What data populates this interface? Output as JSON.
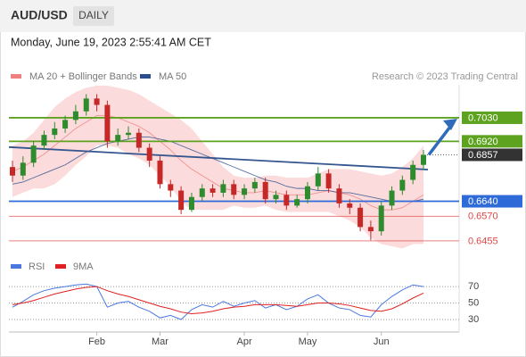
{
  "header": {
    "symbol": "AUD/USD",
    "interval": "DAILY",
    "timestamp": "Monday, June 19, 2023 2:55:41 AM CET",
    "credit": "Research © 2023 Trading Central"
  },
  "chart_data": [
    {
      "type": "candlestick",
      "categories": [
        null,
        null,
        null,
        null,
        null,
        null,
        null,
        null,
        "Feb",
        null,
        null,
        null,
        null,
        null,
        "Mar",
        null,
        null,
        null,
        null,
        null,
        null,
        null,
        "Apr",
        null,
        null,
        null,
        null,
        null,
        "May",
        null,
        null,
        null,
        null,
        null,
        null,
        "Jun",
        null,
        null,
        null,
        null
      ],
      "open": [
        0.68,
        0.676,
        0.682,
        0.69,
        0.695,
        0.698,
        0.702,
        0.706,
        0.712,
        0.709,
        0.692,
        0.695,
        0.696,
        0.689,
        0.683,
        0.672,
        0.669,
        0.66,
        0.666,
        0.67,
        0.668,
        0.672,
        0.667,
        0.67,
        0.673,
        0.665,
        0.667,
        0.662,
        0.665,
        0.671,
        0.677,
        0.67,
        0.663,
        0.661,
        0.652,
        0.65,
        0.662,
        0.669,
        0.674,
        0.681
      ],
      "high": [
        0.683,
        0.685,
        0.692,
        0.697,
        0.701,
        0.704,
        0.709,
        0.714,
        0.714,
        0.711,
        0.698,
        0.699,
        0.698,
        0.691,
        0.685,
        0.674,
        0.671,
        0.668,
        0.672,
        0.672,
        0.674,
        0.674,
        0.672,
        0.675,
        0.675,
        0.669,
        0.669,
        0.667,
        0.673,
        0.68,
        0.679,
        0.672,
        0.665,
        0.663,
        0.655,
        0.664,
        0.671,
        0.676,
        0.683,
        0.688
      ],
      "low": [
        0.673,
        0.674,
        0.68,
        0.688,
        0.693,
        0.696,
        0.7,
        0.704,
        0.706,
        0.689,
        0.69,
        0.693,
        0.687,
        0.68,
        0.67,
        0.666,
        0.658,
        0.659,
        0.664,
        0.666,
        0.666,
        0.665,
        0.665,
        0.668,
        0.663,
        0.663,
        0.66,
        0.661,
        0.663,
        0.669,
        0.668,
        0.661,
        0.658,
        0.65,
        0.6458,
        0.648,
        0.66,
        0.667,
        0.672,
        0.679
      ],
      "close": [
        0.676,
        0.682,
        0.69,
        0.695,
        0.698,
        0.702,
        0.706,
        0.712,
        0.709,
        0.692,
        0.695,
        0.696,
        0.689,
        0.683,
        0.672,
        0.669,
        0.66,
        0.666,
        0.67,
        0.668,
        0.672,
        0.667,
        0.67,
        0.673,
        0.665,
        0.667,
        0.662,
        0.665,
        0.671,
        0.677,
        0.67,
        0.663,
        0.661,
        0.652,
        0.65,
        0.662,
        0.669,
        0.674,
        0.681,
        0.6857
      ],
      "up_color": "#2e8b2e",
      "down_color": "#c62828",
      "series": [
        {
          "name": "MA 20 + Bollinger Bands",
          "color": "#f08080",
          "band_color": "#f9cfcf",
          "values": [
            0.678,
            0.68,
            0.683,
            0.686,
            0.69,
            0.694,
            0.698,
            0.701,
            0.704,
            0.704,
            0.703,
            0.701,
            0.699,
            0.696,
            0.692,
            0.688,
            0.683,
            0.679,
            0.676,
            0.673,
            0.67,
            0.669,
            0.668,
            0.668,
            0.669,
            0.668,
            0.667,
            0.667,
            0.667,
            0.668,
            0.669,
            0.668,
            0.667,
            0.665,
            0.662,
            0.66,
            0.66,
            0.661,
            0.664,
            0.667
          ],
          "upper": [
            0.69,
            0.692,
            0.696,
            0.702,
            0.708,
            0.712,
            0.715,
            0.717,
            0.718,
            0.718,
            0.717,
            0.716,
            0.714,
            0.711,
            0.708,
            0.705,
            0.702,
            0.698,
            0.692,
            0.686,
            0.68,
            0.676,
            0.675,
            0.675,
            0.676,
            0.676,
            0.675,
            0.675,
            0.675,
            0.677,
            0.679,
            0.679,
            0.679,
            0.678,
            0.677,
            0.676,
            0.677,
            0.68,
            0.684,
            0.69
          ],
          "lower": [
            0.666,
            0.668,
            0.67,
            0.67,
            0.672,
            0.676,
            0.681,
            0.685,
            0.69,
            0.69,
            0.689,
            0.686,
            0.684,
            0.681,
            0.676,
            0.671,
            0.664,
            0.66,
            0.66,
            0.66,
            0.66,
            0.662,
            0.661,
            0.661,
            0.662,
            0.66,
            0.659,
            0.659,
            0.659,
            0.659,
            0.659,
            0.657,
            0.655,
            0.652,
            0.647,
            0.644,
            0.643,
            0.642,
            0.644,
            0.644
          ]
        },
        {
          "name": "MA 50",
          "color": "#2b4d8c",
          "values": [
            0.672,
            0.673,
            0.675,
            0.677,
            0.679,
            0.681,
            0.684,
            0.687,
            0.689,
            0.691,
            0.692,
            0.693,
            0.694,
            0.694,
            0.693,
            0.692,
            0.69,
            0.688,
            0.686,
            0.684,
            0.682,
            0.68,
            0.678,
            0.676,
            0.674,
            0.673,
            0.671,
            0.67,
            0.67,
            0.669,
            0.669,
            0.668,
            0.668,
            0.667,
            0.666,
            0.665,
            0.664,
            0.664,
            0.664,
            0.665
          ]
        }
      ],
      "trendline": {
        "values": [
          0.6893,
          0.6788
        ],
        "color": "#34558f"
      },
      "levels": [
        {
          "value": 0.703,
          "label": "0.7030",
          "color": "#5ea31f",
          "line": "solid",
          "boxed": true
        },
        {
          "value": 0.692,
          "label": "0.6920",
          "color": "#5ea31f",
          "line": "solid",
          "boxed": true
        },
        {
          "value": 0.6857,
          "label": "0.6857",
          "color": "#333333",
          "line": "dotted",
          "boxed": true
        },
        {
          "value": 0.664,
          "label": "0.6640",
          "color": "#2f6bd8",
          "line": "solid",
          "boxed": true
        },
        {
          "value": 0.657,
          "label": "0.6570",
          "color": "#e04848",
          "line": "solid",
          "boxed": false
        },
        {
          "value": 0.6455,
          "label": "0.6455",
          "color": "#e04848",
          "line": "solid",
          "boxed": false
        }
      ],
      "ylim": [
        0.6413,
        0.7184
      ]
    },
    {
      "type": "line",
      "series": [
        {
          "name": "RSI",
          "color": "#4a78e0",
          "values": [
            45,
            52,
            60,
            65,
            68,
            70,
            72,
            73,
            70,
            45,
            50,
            52,
            45,
            40,
            32,
            35,
            30,
            42,
            48,
            45,
            52,
            46,
            50,
            53,
            44,
            48,
            42,
            46,
            55,
            60,
            50,
            44,
            42,
            35,
            33,
            48,
            58,
            66,
            72,
            70
          ]
        },
        {
          "name": "9MA",
          "color": "#e02020",
          "values": [
            48,
            50,
            53,
            57,
            61,
            64,
            67,
            69,
            70,
            65,
            61,
            58,
            54,
            50,
            46,
            43,
            39,
            37,
            38,
            40,
            43,
            45,
            46,
            48,
            48,
            48,
            47,
            46,
            48,
            50,
            50,
            49,
            47,
            44,
            41,
            40,
            43,
            49,
            56,
            62
          ]
        }
      ],
      "ylim": [
        17,
        82
      ],
      "yticks": [
        30,
        50,
        70
      ]
    }
  ]
}
